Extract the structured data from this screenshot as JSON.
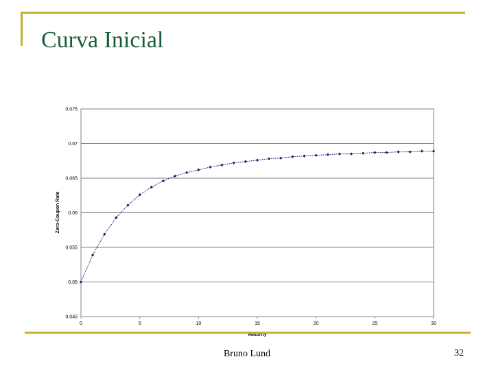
{
  "slide": {
    "title": "Curva Inicial",
    "author": "Bruno Lund",
    "page_number": "32",
    "accent_color": "#c8b030",
    "title_color": "#1a5c3a"
  },
  "chart_data": {
    "type": "line",
    "title": "",
    "xlabel": "Maturity",
    "ylabel": "Zero-Coupon Rate",
    "xlim": [
      0,
      30
    ],
    "ylim": [
      0.045,
      0.075
    ],
    "xticks": [
      0,
      5,
      10,
      15,
      20,
      25,
      30
    ],
    "xtick_labels": [
      "0",
      "5",
      "10",
      "15",
      "20",
      "25",
      "30"
    ],
    "yticks": [
      0.045,
      0.05,
      0.055,
      0.06,
      0.065,
      0.07,
      0.075
    ],
    "ytick_labels": [
      "0.045",
      "0.05",
      "0.055",
      "0.06",
      "0.065",
      "0.07",
      "0.075"
    ],
    "grid": true,
    "legend": "none",
    "series": [
      {
        "color": "#1f1f6e",
        "x": [
          0,
          1,
          2,
          3,
          4,
          5,
          6,
          7,
          8,
          9,
          10,
          11,
          12,
          13,
          14,
          15,
          16,
          17,
          18,
          19,
          20,
          21,
          22,
          23,
          24,
          25,
          26,
          27,
          28,
          29,
          30
        ],
        "values": [
          0.05,
          0.0539,
          0.0569,
          0.0593,
          0.0611,
          0.0626,
          0.0637,
          0.0646,
          0.0653,
          0.0658,
          0.0662,
          0.0666,
          0.0669,
          0.0672,
          0.0674,
          0.0676,
          0.0678,
          0.0679,
          0.0681,
          0.0682,
          0.0683,
          0.0684,
          0.0685,
          0.0685,
          0.0686,
          0.0687,
          0.0687,
          0.0688,
          0.0688,
          0.0689,
          0.0689
        ]
      }
    ]
  }
}
